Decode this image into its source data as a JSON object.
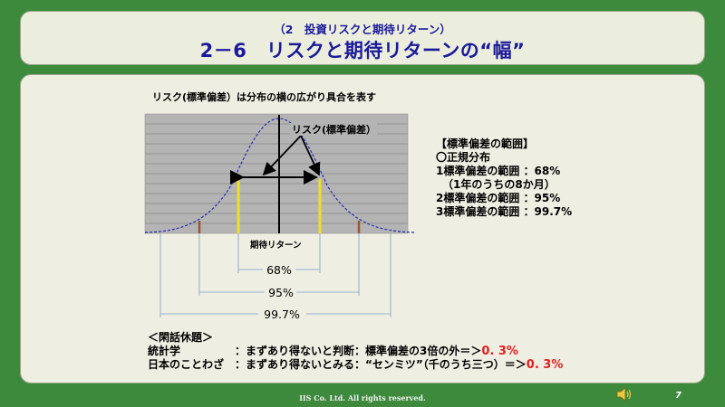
{
  "header": {
    "subtitle": "（2　投資リスクと期待リターン）",
    "title": "2－6　リスクと期待リターンの“幅”"
  },
  "caption": "リスク(標準偏差）は分布の横の広がり具合を表す",
  "diagram": {
    "risk_label": "リスク(標準偏差）",
    "mean_label": "期待リターン",
    "range_68": "68%",
    "range_95": "95%",
    "range_997": "99.7%",
    "colors": {
      "curve": "#2a2ab0",
      "sigma1": "#f0e020",
      "sigma3": "#a0522d",
      "grid_bg": "#b4b4b4",
      "bracket": "#7a9ccc"
    }
  },
  "legend": {
    "title": "【標準偏差の範囲】",
    "subtitle": "〇正規分布",
    "line1": "1標準偏差の範囲 ：68%",
    "line1_note": "（1年のうちの8か月）",
    "line2": "2標準偏差の範囲 ：95%",
    "line3": "3標準偏差の範囲 ：99.7%"
  },
  "trivia": {
    "title": "＜閑話休題＞",
    "row1_label": "統計学",
    "row1_text": "：まずあり得ないと判断：標準偏差の3倍の外＝＞",
    "row1_value": "0. 3%",
    "row2_label": "日本のことわざ",
    "row2_text": "：まずあり得ないとみる：“センミツ”（千のうち三つ）＝＞",
    "row2_value": "0. 3%"
  },
  "footer": {
    "copyright": "IIS Co. Ltd. All rights reserved.",
    "page_number": "7",
    "speaker_icon": "speaker-icon"
  }
}
